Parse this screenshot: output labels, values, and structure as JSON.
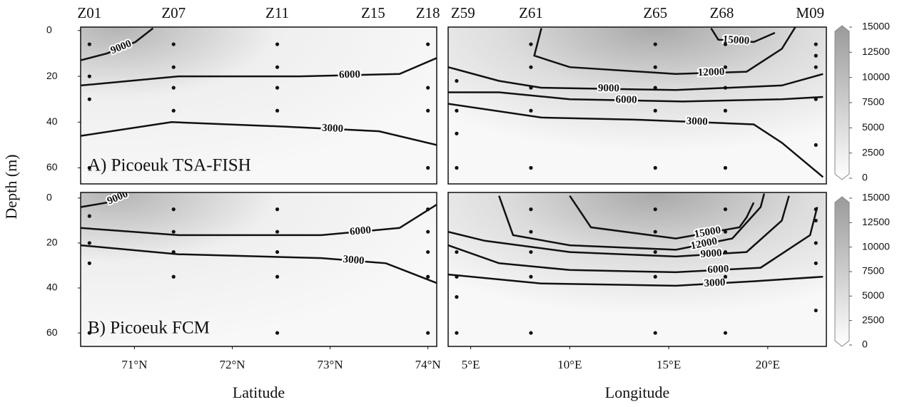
{
  "chart_data": [
    {
      "type": "contour",
      "title": "A) Picoeuk TSA-FISH",
      "ylabel": "Depth (m)",
      "xlim": [
        70.45,
        74.09
      ],
      "ylim": [
        -1.5,
        67
      ],
      "yticks": [
        0,
        20,
        40,
        60
      ],
      "stations": [
        {
          "name": "Z01",
          "x": 70.54
        },
        {
          "name": "Z07",
          "x": 71.4
        },
        {
          "name": "Z11",
          "x": 72.46
        },
        {
          "name": "Z15",
          "x": 73.44
        },
        {
          "name": "Z18",
          "x": 74.0
        }
      ],
      "samples": [
        {
          "x": 70.54,
          "depths": [
            6,
            20,
            30,
            60
          ]
        },
        {
          "x": 71.4,
          "depths": [
            6,
            16,
            25,
            35
          ]
        },
        {
          "x": 72.46,
          "depths": [
            6,
            16,
            25,
            35
          ]
        },
        {
          "x": 74.0,
          "depths": [
            6,
            25,
            35,
            60
          ]
        }
      ],
      "contours": [
        {
          "level": 3000,
          "x": [
            70.45,
            71.38,
            72.55,
            73.5,
            74.09
          ],
          "depths": [
            46,
            40,
            42,
            44,
            50
          ]
        },
        {
          "level": 6000,
          "x": [
            70.45,
            71.45,
            72.69,
            73.71,
            74.09
          ],
          "depths": [
            24,
            20,
            20,
            19,
            12
          ]
        },
        {
          "level": 9000,
          "x": [
            70.45,
            70.72,
            71.01,
            71.19
          ],
          "depths": [
            13,
            10,
            5,
            -1
          ]
        }
      ]
    },
    {
      "type": "contour",
      "xlim": [
        3.86,
        22.96
      ],
      "ylim": [
        -1.5,
        67
      ],
      "stations": [
        {
          "name": "Z59",
          "x": 4.61
        },
        {
          "name": "Z61",
          "x": 8.04
        },
        {
          "name": "Z65",
          "x": 14.32
        },
        {
          "name": "Z68",
          "x": 17.68
        },
        {
          "name": "M09",
          "x": 22.14
        }
      ],
      "samples": [
        {
          "x": 4.29,
          "depths": [
            22,
            35,
            45,
            60
          ]
        },
        {
          "x": 8.04,
          "depths": [
            6,
            16,
            25,
            35,
            60
          ]
        },
        {
          "x": 14.32,
          "depths": [
            6,
            16,
            25,
            35,
            60
          ]
        },
        {
          "x": 17.86,
          "depths": [
            6,
            16,
            25,
            35,
            60
          ]
        },
        {
          "x": 22.43,
          "depths": [
            6,
            11,
            16,
            30,
            50
          ]
        }
      ],
      "contours": [
        {
          "level": 3000,
          "x": [
            3.86,
            8.57,
            13.57,
            19.29,
            20.71,
            22.79
          ],
          "depths": [
            32,
            38,
            39,
            41,
            49,
            64
          ]
        },
        {
          "level": 6000,
          "x": [
            3.86,
            6.43,
            10.0,
            15.71,
            20.71,
            22.79
          ],
          "depths": [
            27,
            27,
            30,
            31,
            30,
            29
          ]
        },
        {
          "level": 9000,
          "x": [
            3.86,
            6.43,
            8.57,
            15.36,
            20.71,
            22.79
          ],
          "depths": [
            16,
            22,
            25,
            26,
            24,
            19
          ]
        },
        {
          "level": 12000,
          "x": [
            8.57,
            8.21,
            10.0,
            15.36,
            18.93,
            20.71,
            21.43
          ],
          "depths": [
            -1,
            11,
            16,
            19,
            18,
            8,
            -2
          ]
        },
        {
          "level": 15000,
          "x": [
            17.14,
            17.5,
            19.3,
            20.36
          ],
          "depths": [
            -1,
            4,
            5,
            1
          ]
        }
      ],
      "clim": [
        0,
        15000
      ],
      "cticks": [
        0,
        2500,
        5000,
        7500,
        10000,
        12500,
        15000
      ]
    },
    {
      "type": "contour",
      "title": "B) Picoeuk FCM",
      "xlabel": "Latitude",
      "xlim": [
        70.45,
        74.09
      ],
      "ylim": [
        -2.5,
        66
      ],
      "yticks": [
        0,
        20,
        40,
        60
      ],
      "xticks": [
        {
          "value": 71,
          "label": "71°N"
        },
        {
          "value": 72,
          "label": "72°N"
        },
        {
          "value": 73,
          "label": "73°N"
        },
        {
          "value": 74,
          "label": "74°N"
        }
      ],
      "samples": [
        {
          "x": 70.54,
          "depths": [
            8,
            20,
            29,
            60
          ]
        },
        {
          "x": 71.4,
          "depths": [
            5,
            15,
            24,
            35
          ]
        },
        {
          "x": 72.46,
          "depths": [
            5,
            15,
            24,
            35,
            60
          ]
        },
        {
          "x": 74.0,
          "depths": [
            5,
            15,
            24,
            35,
            60
          ]
        }
      ],
      "contours": [
        {
          "level": 3000,
          "x": [
            70.45,
            71.45,
            72.91,
            73.57,
            74.09
          ],
          "depths": [
            21,
            25,
            26.7,
            29,
            37.8
          ]
        },
        {
          "level": 6000,
          "x": [
            70.45,
            71.45,
            72.91,
            73.71,
            74.09
          ],
          "depths": [
            13.3,
            16.5,
            16.5,
            13.3,
            2.9
          ]
        },
        {
          "level": 9000,
          "x": [
            70.45,
            70.72,
            70.94
          ],
          "depths": [
            4,
            2,
            -2
          ]
        }
      ]
    },
    {
      "type": "contour",
      "xlabel": "Longitude",
      "xlim": [
        3.86,
        22.96
      ],
      "ylim": [
        -2.5,
        66
      ],
      "xticks": [
        {
          "value": 5,
          "label": "5°E"
        },
        {
          "value": 10,
          "label": "10°E"
        },
        {
          "value": 15,
          "label": "15°E"
        },
        {
          "value": 20,
          "label": "20°E"
        }
      ],
      "samples": [
        {
          "x": 4.29,
          "depths": [
            24,
            35,
            44,
            60
          ]
        },
        {
          "x": 8.04,
          "depths": [
            5,
            15,
            24,
            35,
            60
          ]
        },
        {
          "x": 14.32,
          "depths": [
            5,
            15,
            24,
            35,
            60
          ]
        },
        {
          "x": 17.86,
          "depths": [
            5,
            15,
            24,
            35,
            60
          ]
        },
        {
          "x": 22.43,
          "depths": [
            5,
            10,
            20,
            29,
            50
          ]
        }
      ],
      "contours": [
        {
          "level": 3000,
          "x": [
            3.86,
            8.57,
            15.36,
            19.29,
            22.79
          ],
          "depths": [
            34,
            38,
            39,
            37,
            35
          ]
        },
        {
          "level": 6000,
          "x": [
            3.86,
            6.43,
            10.0,
            15.36,
            19.64,
            22.14,
            22.5
          ],
          "depths": [
            21,
            29,
            32,
            33,
            31,
            16.5,
            4
          ]
        },
        {
          "level": 9000,
          "x": [
            3.86,
            5.71,
            10.0,
            15.36,
            18.93,
            20.71,
            21.07
          ],
          "depths": [
            15,
            19,
            24,
            26,
            24,
            10,
            -1
          ]
        },
        {
          "level": 12000,
          "x": [
            6.43,
            7.14,
            10.0,
            15.36,
            18.21,
            19.64,
            19.82
          ],
          "depths": [
            -1,
            16.5,
            21,
            23,
            18,
            4,
            -2
          ]
        },
        {
          "level": 15000,
          "x": [
            10.0,
            11.07,
            15.36,
            18.57,
            18.93,
            19.29
          ],
          "depths": [
            -1,
            13,
            18,
            13,
            8.6,
            2
          ]
        }
      ],
      "clim": [
        0,
        15000
      ],
      "cticks": [
        0,
        2500,
        5000,
        7500,
        10000,
        12500,
        15000
      ]
    }
  ]
}
